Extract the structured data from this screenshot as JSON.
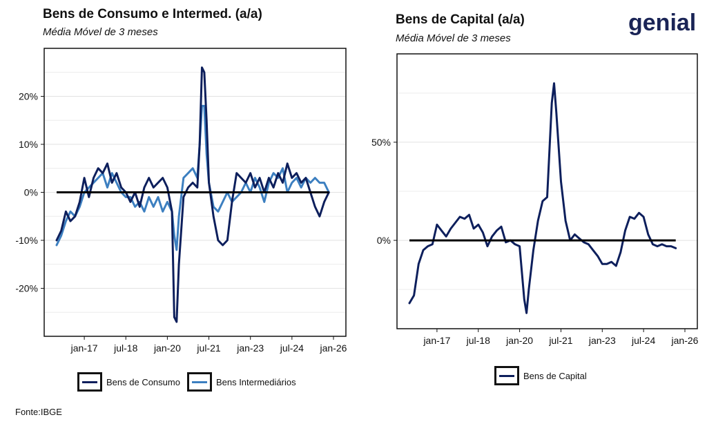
{
  "brand": {
    "logo_text": "genial",
    "accent_color": "#2d78c8",
    "primary_color": "#1a2456"
  },
  "source": "Fonte:IBGE",
  "chart_data": [
    {
      "type": "line",
      "title": "Bens de Consumo e Intermed. (a/a)",
      "subtitle": "Média Móvel de 3 meses",
      "ylabel": "",
      "xlabel": "",
      "x_range": [
        "2016-01",
        "2026-01"
      ],
      "ylim": [
        -30,
        30
      ],
      "yticks": [
        -20,
        -10,
        0,
        10,
        20
      ],
      "ytick_labels": [
        "-20%",
        "-10%",
        "0%",
        "10%",
        "20%"
      ],
      "xticks": [
        "2017-01",
        "2018-07",
        "2020-01",
        "2021-07",
        "2023-01",
        "2024-07",
        "2026-01"
      ],
      "xtick_labels": [
        "jan-17",
        "jul-18",
        "jan-20",
        "jul-21",
        "jan-23",
        "jul-24",
        "jan-26"
      ],
      "grid": true,
      "legend_position": "bottom",
      "zero_line": true,
      "series": [
        {
          "name": "Bens de Consumo",
          "color": "#0d1f5c",
          "points": [
            [
              "2016-01",
              -10
            ],
            [
              "2016-03",
              -8
            ],
            [
              "2016-05",
              -4
            ],
            [
              "2016-07",
              -6
            ],
            [
              "2016-09",
              -5
            ],
            [
              "2016-11",
              -2
            ],
            [
              "2017-01",
              3
            ],
            [
              "2017-03",
              -1
            ],
            [
              "2017-05",
              3
            ],
            [
              "2017-07",
              5
            ],
            [
              "2017-09",
              4
            ],
            [
              "2017-11",
              6
            ],
            [
              "2018-01",
              2
            ],
            [
              "2018-03",
              4
            ],
            [
              "2018-05",
              1
            ],
            [
              "2018-07",
              0
            ],
            [
              "2018-09",
              -2
            ],
            [
              "2018-11",
              0
            ],
            [
              "2019-01",
              -3
            ],
            [
              "2019-03",
              1
            ],
            [
              "2019-05",
              3
            ],
            [
              "2019-07",
              1
            ],
            [
              "2019-09",
              2
            ],
            [
              "2019-11",
              3
            ],
            [
              "2020-01",
              1
            ],
            [
              "2020-03",
              -4
            ],
            [
              "2020-04",
              -26
            ],
            [
              "2020-05",
              -27
            ],
            [
              "2020-06",
              -15
            ],
            [
              "2020-08",
              -1
            ],
            [
              "2020-10",
              1
            ],
            [
              "2020-12",
              2
            ],
            [
              "2021-02",
              1
            ],
            [
              "2021-03",
              10
            ],
            [
              "2021-04",
              26
            ],
            [
              "2021-05",
              25
            ],
            [
              "2021-06",
              15
            ],
            [
              "2021-07",
              2
            ],
            [
              "2021-09",
              -5
            ],
            [
              "2021-11",
              -10
            ],
            [
              "2022-01",
              -11
            ],
            [
              "2022-03",
              -10
            ],
            [
              "2022-05",
              -2
            ],
            [
              "2022-07",
              4
            ],
            [
              "2022-09",
              3
            ],
            [
              "2022-11",
              2
            ],
            [
              "2023-01",
              4
            ],
            [
              "2023-03",
              1
            ],
            [
              "2023-05",
              3
            ],
            [
              "2023-07",
              0
            ],
            [
              "2023-09",
              3
            ],
            [
              "2023-11",
              1
            ],
            [
              "2024-01",
              4
            ],
            [
              "2024-03",
              2
            ],
            [
              "2024-05",
              6
            ],
            [
              "2024-07",
              3
            ],
            [
              "2024-09",
              4
            ],
            [
              "2024-11",
              2
            ],
            [
              "2025-01",
              3
            ],
            [
              "2025-03",
              0
            ],
            [
              "2025-05",
              -3
            ],
            [
              "2025-07",
              -5
            ],
            [
              "2025-09",
              -2
            ],
            [
              "2025-11",
              0
            ]
          ]
        },
        {
          "name": "Bens Intermediários",
          "color": "#3c7fc0",
          "points": [
            [
              "2016-01",
              -11
            ],
            [
              "2016-03",
              -9
            ],
            [
              "2016-05",
              -6
            ],
            [
              "2016-07",
              -4
            ],
            [
              "2016-09",
              -5
            ],
            [
              "2016-11",
              -3
            ],
            [
              "2017-01",
              0
            ],
            [
              "2017-03",
              1
            ],
            [
              "2017-05",
              2
            ],
            [
              "2017-07",
              3
            ],
            [
              "2017-09",
              4
            ],
            [
              "2017-11",
              1
            ],
            [
              "2018-01",
              4
            ],
            [
              "2018-03",
              2
            ],
            [
              "2018-05",
              0
            ],
            [
              "2018-07",
              -1
            ],
            [
              "2018-09",
              -1
            ],
            [
              "2018-11",
              -3
            ],
            [
              "2019-01",
              -2
            ],
            [
              "2019-03",
              -4
            ],
            [
              "2019-05",
              -1
            ],
            [
              "2019-07",
              -3
            ],
            [
              "2019-09",
              -1
            ],
            [
              "2019-11",
              -4
            ],
            [
              "2020-01",
              -2
            ],
            [
              "2020-03",
              -4
            ],
            [
              "2020-04",
              -9
            ],
            [
              "2020-05",
              -12
            ],
            [
              "2020-06",
              -5
            ],
            [
              "2020-08",
              3
            ],
            [
              "2020-10",
              4
            ],
            [
              "2020-12",
              5
            ],
            [
              "2021-02",
              3
            ],
            [
              "2021-03",
              10
            ],
            [
              "2021-04",
              18
            ],
            [
              "2021-05",
              18
            ],
            [
              "2021-06",
              8
            ],
            [
              "2021-07",
              2
            ],
            [
              "2021-09",
              -3
            ],
            [
              "2021-11",
              -4
            ],
            [
              "2022-01",
              -2
            ],
            [
              "2022-03",
              0
            ],
            [
              "2022-05",
              -2
            ],
            [
              "2022-07",
              -1
            ],
            [
              "2022-09",
              0
            ],
            [
              "2022-11",
              2
            ],
            [
              "2023-01",
              0
            ],
            [
              "2023-03",
              3
            ],
            [
              "2023-05",
              1
            ],
            [
              "2023-07",
              -2
            ],
            [
              "2023-09",
              2
            ],
            [
              "2023-11",
              4
            ],
            [
              "2024-01",
              3
            ],
            [
              "2024-03",
              5
            ],
            [
              "2024-05",
              0
            ],
            [
              "2024-07",
              2
            ],
            [
              "2024-09",
              3
            ],
            [
              "2024-11",
              1
            ],
            [
              "2025-01",
              3
            ],
            [
              "2025-03",
              2
            ],
            [
              "2025-05",
              3
            ],
            [
              "2025-07",
              2
            ],
            [
              "2025-09",
              2
            ],
            [
              "2025-11",
              0
            ]
          ]
        }
      ]
    },
    {
      "type": "line",
      "title": "Bens de Capital (a/a)",
      "subtitle": "Média Móvel de 3 meses",
      "ylabel": "",
      "xlabel": "",
      "x_range": [
        "2016-01",
        "2026-01"
      ],
      "ylim": [
        -45,
        95
      ],
      "yticks": [
        0,
        50
      ],
      "ytick_labels": [
        "0%",
        "50%"
      ],
      "xticks": [
        "2017-01",
        "2018-07",
        "2020-01",
        "2021-07",
        "2023-01",
        "2024-07",
        "2026-01"
      ],
      "xtick_labels": [
        "jan-17",
        "jul-18",
        "jan-20",
        "jul-21",
        "jan-23",
        "jul-24",
        "jan-26"
      ],
      "grid": true,
      "legend_position": "bottom",
      "zero_line": true,
      "series": [
        {
          "name": "Bens de Capital",
          "color": "#0d1f5c",
          "points": [
            [
              "2016-01",
              -32
            ],
            [
              "2016-03",
              -28
            ],
            [
              "2016-05",
              -12
            ],
            [
              "2016-07",
              -5
            ],
            [
              "2016-09",
              -3
            ],
            [
              "2016-11",
              -2
            ],
            [
              "2017-01",
              8
            ],
            [
              "2017-03",
              5
            ],
            [
              "2017-05",
              2
            ],
            [
              "2017-07",
              6
            ],
            [
              "2017-09",
              9
            ],
            [
              "2017-11",
              12
            ],
            [
              "2018-01",
              11
            ],
            [
              "2018-03",
              13
            ],
            [
              "2018-05",
              6
            ],
            [
              "2018-07",
              8
            ],
            [
              "2018-09",
              4
            ],
            [
              "2018-11",
              -3
            ],
            [
              "2019-01",
              2
            ],
            [
              "2019-03",
              5
            ],
            [
              "2019-05",
              7
            ],
            [
              "2019-07",
              -1
            ],
            [
              "2019-09",
              0
            ],
            [
              "2019-11",
              -2
            ],
            [
              "2020-01",
              -3
            ],
            [
              "2020-03",
              -30
            ],
            [
              "2020-04",
              -37
            ],
            [
              "2020-05",
              -25
            ],
            [
              "2020-07",
              -5
            ],
            [
              "2020-09",
              10
            ],
            [
              "2020-11",
              20
            ],
            [
              "2021-01",
              22
            ],
            [
              "2021-03",
              70
            ],
            [
              "2021-04",
              80
            ],
            [
              "2021-05",
              65
            ],
            [
              "2021-07",
              30
            ],
            [
              "2021-09",
              10
            ],
            [
              "2021-11",
              0
            ],
            [
              "2022-01",
              3
            ],
            [
              "2022-03",
              1
            ],
            [
              "2022-05",
              -1
            ],
            [
              "2022-07",
              -2
            ],
            [
              "2022-09",
              -5
            ],
            [
              "2022-11",
              -8
            ],
            [
              "2023-01",
              -12
            ],
            [
              "2023-03",
              -12
            ],
            [
              "2023-05",
              -11
            ],
            [
              "2023-07",
              -13
            ],
            [
              "2023-09",
              -6
            ],
            [
              "2023-11",
              5
            ],
            [
              "2024-01",
              12
            ],
            [
              "2024-03",
              11
            ],
            [
              "2024-05",
              14
            ],
            [
              "2024-07",
              12
            ],
            [
              "2024-09",
              3
            ],
            [
              "2024-11",
              -2
            ],
            [
              "2025-01",
              -3
            ],
            [
              "2025-03",
              -2
            ],
            [
              "2025-05",
              -3
            ],
            [
              "2025-07",
              -3
            ],
            [
              "2025-09",
              -4
            ]
          ]
        }
      ]
    }
  ]
}
